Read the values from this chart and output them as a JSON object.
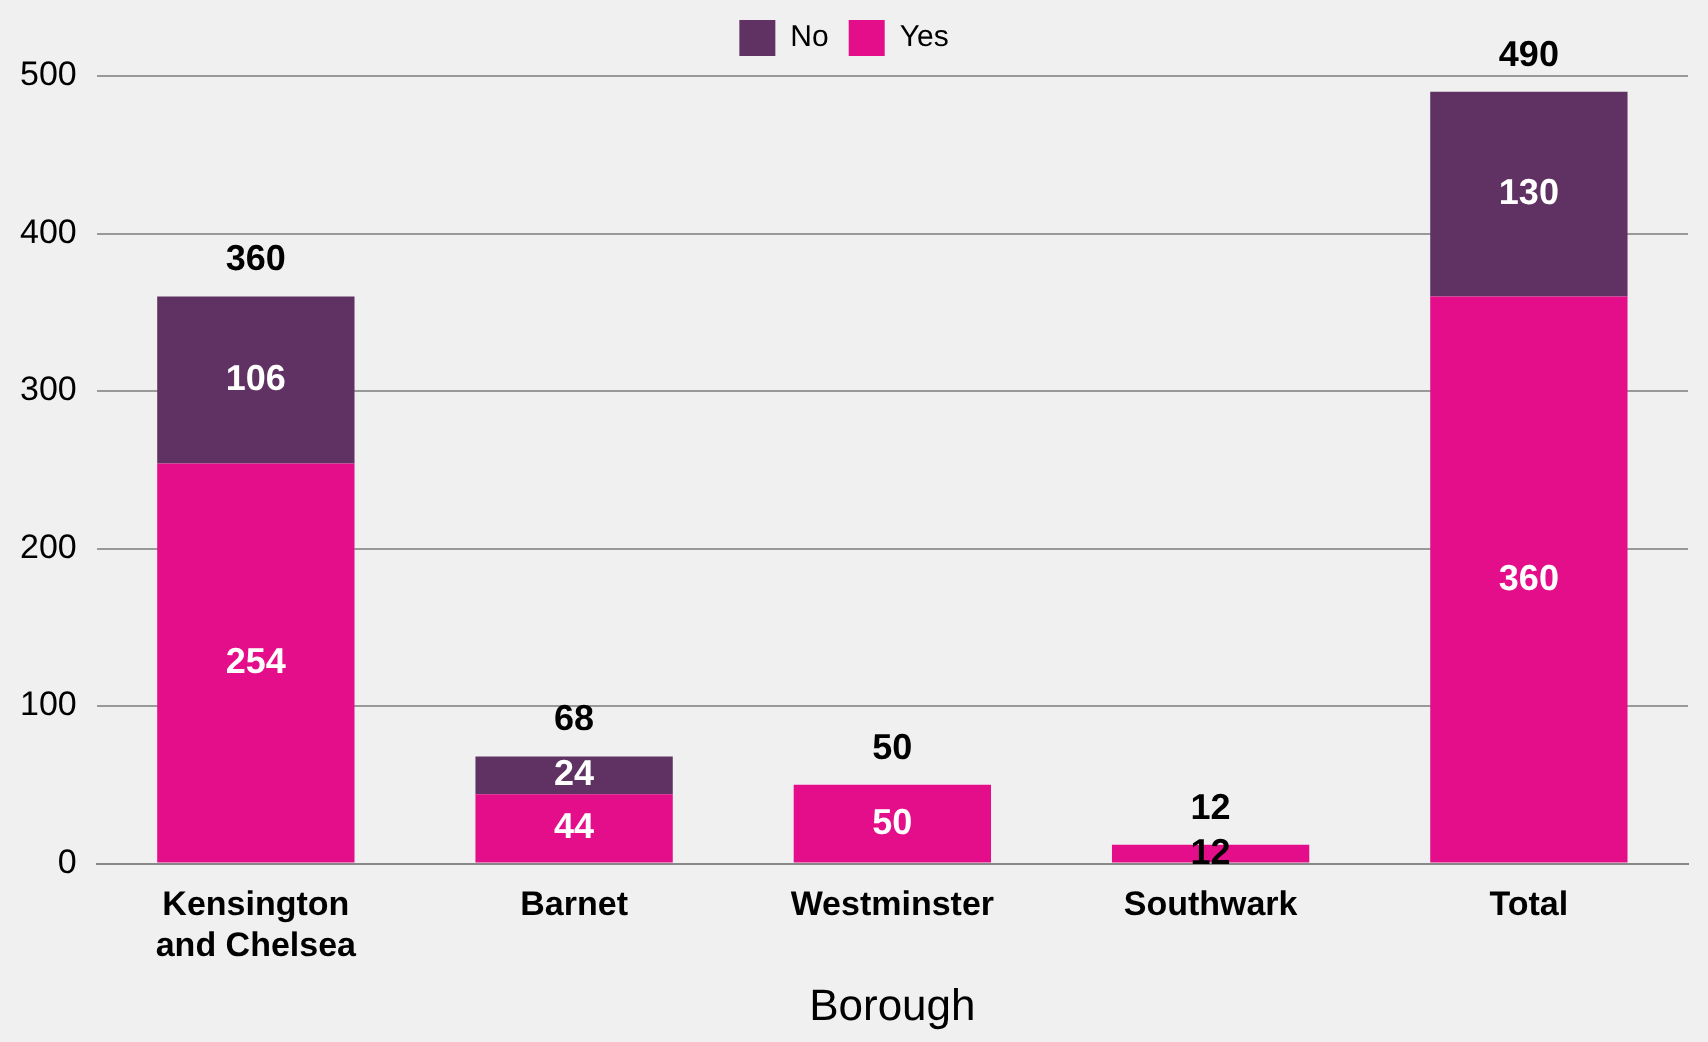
{
  "chart_data": {
    "type": "bar",
    "xlabel": "Borough",
    "categories": [
      "Kensington and Chelsea",
      "Barnet",
      "Westminster",
      "Southwark",
      "Total"
    ],
    "series": [
      {
        "name": "Yes",
        "color": "#e50e8a",
        "values": [
          254,
          44,
          50,
          12,
          360
        ]
      },
      {
        "name": "No",
        "color": "#5f3263",
        "values": [
          106,
          24,
          null,
          null,
          130
        ]
      }
    ],
    "stacked": true,
    "data_labels": true,
    "totals": [
      "360",
      "68",
      "50",
      "12",
      "490"
    ],
    "ylim": [
      0,
      500
    ],
    "yticks": [
      0,
      100,
      200,
      300,
      400,
      500
    ],
    "grid": "y",
    "legend": "top"
  }
}
